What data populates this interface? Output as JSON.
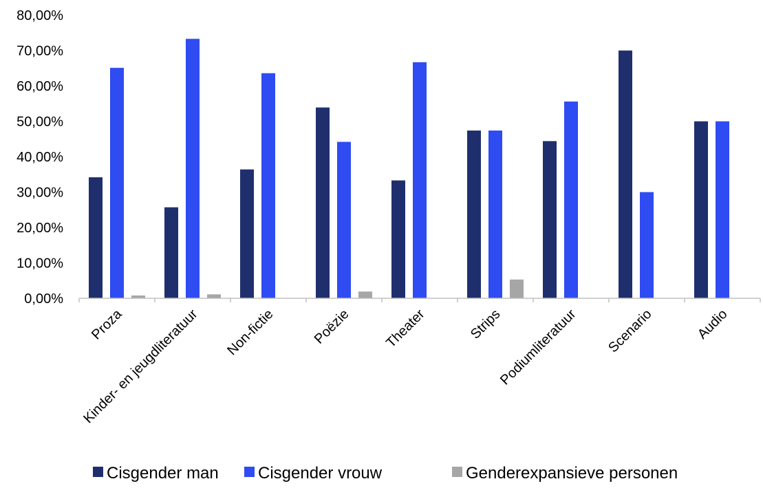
{
  "chart_data": {
    "type": "bar",
    "title": "",
    "xlabel": "",
    "ylabel": "",
    "ylim": [
      0,
      80
    ],
    "yticks": [
      "0,00%",
      "10,00%",
      "20,00%",
      "30,00%",
      "40,00%",
      "50,00%",
      "60,00%",
      "70,00%",
      "80,00%"
    ],
    "grid": false,
    "legend_position": "bottom",
    "categories": [
      "Proza",
      "Kinder- en jeugdliteratuur",
      "Non-fictie",
      "Poëzie",
      "Theater",
      "Strips",
      "Podiumliteratuur",
      "Scenario",
      "Audio"
    ],
    "series": [
      {
        "name": "Cisgender man",
        "color": "#1f2f6e",
        "values": [
          34.2,
          25.7,
          36.4,
          53.9,
          33.3,
          47.4,
          44.4,
          70.0,
          50.0
        ]
      },
      {
        "name": "Cisgender vrouw",
        "color": "#2f4bf2",
        "values": [
          65.1,
          73.3,
          63.6,
          44.2,
          66.7,
          47.4,
          55.6,
          30.0,
          50.0
        ]
      },
      {
        "name": "Genderexpansieve personen",
        "color": "#a6a6a6",
        "values": [
          0.8,
          1.1,
          0,
          1.9,
          0,
          5.3,
          0,
          0,
          0
        ]
      }
    ]
  }
}
